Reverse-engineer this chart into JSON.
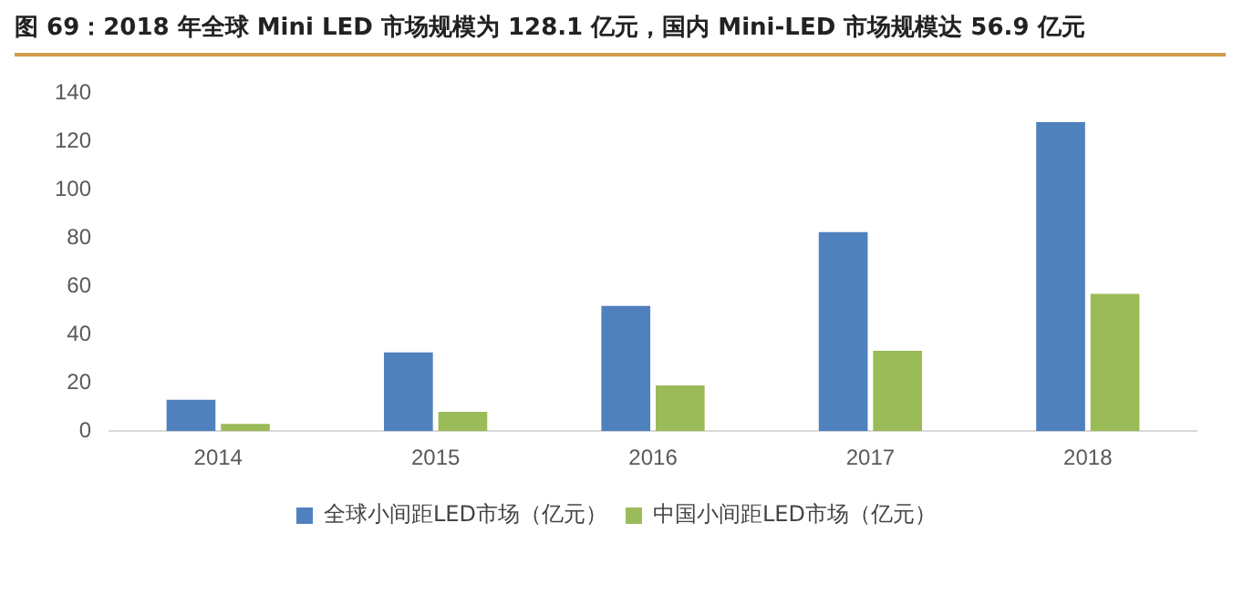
{
  "chart_data": {
    "type": "bar",
    "title": "图 69：2018 年全球 Mini LED 市场规模为 128.1 亿元，国内 Mini-LED 市场规模达 56.9 亿元",
    "categories": [
      "2014",
      "2015",
      "2016",
      "2017",
      "2018"
    ],
    "series": [
      {
        "name": "全球小间距LED市场（亿元）",
        "color": "#4f81bd",
        "values": [
          13,
          32.6,
          51.9,
          82.5,
          128.1
        ]
      },
      {
        "name": "中国小间距LED市场（亿元）",
        "color": "#9bbb59",
        "values": [
          3,
          8,
          19,
          33.3,
          56.9
        ]
      }
    ],
    "ylim": [
      0,
      140
    ],
    "yticks": [
      0,
      20,
      40,
      60,
      80,
      100,
      120,
      140
    ],
    "grid": false,
    "legend": "bottom"
  }
}
